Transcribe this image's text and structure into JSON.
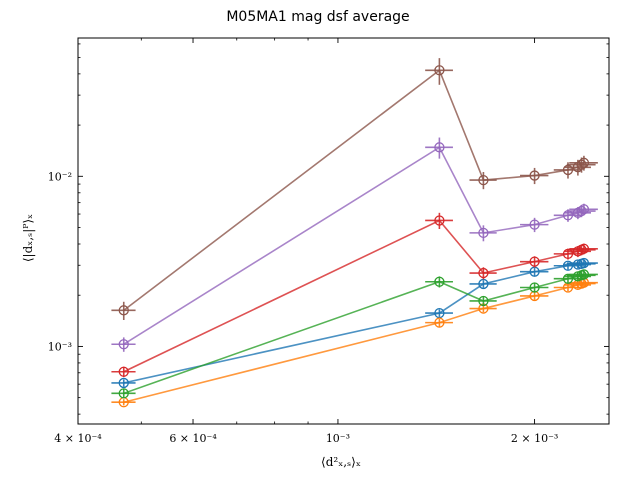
{
  "chart_data": {
    "type": "scatter",
    "title": "M05MA1 mag dsf average",
    "xlabel": "⟨d²ₓ,ₛ⟩ₓ",
    "ylabel": "⟨|dₓ,ₛ|ᴾ⟩ₓ",
    "xscale": "log",
    "yscale": "log",
    "xlim": [
      0.0004,
      0.0026
    ],
    "ylim": [
      0.00035,
      0.065
    ],
    "x_ticks": [
      {
        "value": 0.0004,
        "label": "4 × 10⁻⁴"
      },
      {
        "value": 0.0006,
        "label": "6 × 10⁻⁴"
      },
      {
        "value": 0.001,
        "label": "10⁻³"
      },
      {
        "value": 0.002,
        "label": "2 × 10⁻³"
      }
    ],
    "y_ticks": [
      {
        "value": 0.001,
        "label": "10⁻³"
      },
      {
        "value": 0.01,
        "label": "10⁻²"
      }
    ],
    "legend": "none",
    "grid": false,
    "series": [
      {
        "color": "#1f77b4",
        "points": [
          {
            "x": 0.00047,
            "y": 0.00061,
            "xerr": 2e-05,
            "yerr": 3e-05
          },
          {
            "x": 0.00143,
            "y": 0.00157,
            "xerr": 7e-05,
            "yerr": 8e-05
          },
          {
            "x": 0.00167,
            "y": 0.00233,
            "xerr": 8e-05,
            "yerr": 0.00012
          },
          {
            "x": 0.002,
            "y": 0.00275,
            "xerr": 0.0001,
            "yerr": 0.00014
          },
          {
            "x": 0.00225,
            "y": 0.00298,
            "xerr": 0.00011,
            "yerr": 0.00015
          },
          {
            "x": 0.00233,
            "y": 0.00303,
            "xerr": 0.00011,
            "yerr": 0.00015
          },
          {
            "x": 0.00236,
            "y": 0.00306,
            "xerr": 0.00012,
            "yerr": 0.00015
          },
          {
            "x": 0.00238,
            "y": 0.00309,
            "xerr": 0.00012,
            "yerr": 0.00015
          }
        ]
      },
      {
        "color": "#ff7f0e",
        "points": [
          {
            "x": 0.00047,
            "y": 0.00047,
            "xerr": 2e-05,
            "yerr": 2e-05
          },
          {
            "x": 0.00143,
            "y": 0.00138,
            "xerr": 7e-05,
            "yerr": 7e-05
          },
          {
            "x": 0.00167,
            "y": 0.00167,
            "xerr": 8e-05,
            "yerr": 8e-05
          },
          {
            "x": 0.002,
            "y": 0.00198,
            "xerr": 0.0001,
            "yerr": 0.0001
          },
          {
            "x": 0.00225,
            "y": 0.00222,
            "xerr": 0.00011,
            "yerr": 0.00011
          },
          {
            "x": 0.00233,
            "y": 0.0023,
            "xerr": 0.00011,
            "yerr": 0.00011
          },
          {
            "x": 0.00236,
            "y": 0.00234,
            "xerr": 0.00012,
            "yerr": 0.00012
          },
          {
            "x": 0.00238,
            "y": 0.00237,
            "xerr": 0.00012,
            "yerr": 0.00012
          }
        ]
      },
      {
        "color": "#2ca02c",
        "points": [
          {
            "x": 0.00047,
            "y": 0.00053,
            "xerr": 2e-05,
            "yerr": 3e-05
          },
          {
            "x": 0.00143,
            "y": 0.0024,
            "xerr": 7e-05,
            "yerr": 0.00018
          },
          {
            "x": 0.00167,
            "y": 0.00185,
            "xerr": 8e-05,
            "yerr": 0.00012
          },
          {
            "x": 0.002,
            "y": 0.00222,
            "xerr": 0.0001,
            "yerr": 0.00013
          },
          {
            "x": 0.00225,
            "y": 0.0025,
            "xerr": 0.00011,
            "yerr": 0.00014
          },
          {
            "x": 0.00233,
            "y": 0.00258,
            "xerr": 0.00011,
            "yerr": 0.00014
          },
          {
            "x": 0.00236,
            "y": 0.00262,
            "xerr": 0.00012,
            "yerr": 0.00014
          },
          {
            "x": 0.00238,
            "y": 0.00265,
            "xerr": 0.00012,
            "yerr": 0.00014
          }
        ]
      },
      {
        "color": "#d62728",
        "points": [
          {
            "x": 0.00047,
            "y": 0.00071,
            "xerr": 2e-05,
            "yerr": 5e-05
          },
          {
            "x": 0.00143,
            "y": 0.0055,
            "xerr": 7e-05,
            "yerr": 0.0006
          },
          {
            "x": 0.00167,
            "y": 0.0027,
            "xerr": 8e-05,
            "yerr": 0.00022
          },
          {
            "x": 0.002,
            "y": 0.00315,
            "xerr": 0.0001,
            "yerr": 0.00024
          },
          {
            "x": 0.00225,
            "y": 0.0035,
            "xerr": 0.00011,
            "yerr": 0.00026
          },
          {
            "x": 0.00233,
            "y": 0.00362,
            "xerr": 0.00011,
            "yerr": 0.00027
          },
          {
            "x": 0.00236,
            "y": 0.0037,
            "xerr": 0.00012,
            "yerr": 0.00027
          },
          {
            "x": 0.00238,
            "y": 0.00375,
            "xerr": 0.00012,
            "yerr": 0.00027
          }
        ]
      },
      {
        "color": "#9467bd",
        "points": [
          {
            "x": 0.00047,
            "y": 0.00103,
            "xerr": 2e-05,
            "yerr": 0.0001
          },
          {
            "x": 0.00143,
            "y": 0.0148,
            "xerr": 7e-05,
            "yerr": 0.0021
          },
          {
            "x": 0.00167,
            "y": 0.00465,
            "xerr": 8e-05,
            "yerr": 0.0005
          },
          {
            "x": 0.002,
            "y": 0.0052,
            "xerr": 0.0001,
            "yerr": 0.0005
          },
          {
            "x": 0.00225,
            "y": 0.0059,
            "xerr": 0.00011,
            "yerr": 0.0005
          },
          {
            "x": 0.00233,
            "y": 0.0061,
            "xerr": 0.00011,
            "yerr": 0.0005
          },
          {
            "x": 0.00236,
            "y": 0.00625,
            "xerr": 0.00012,
            "yerr": 0.0005
          },
          {
            "x": 0.00238,
            "y": 0.0064,
            "xerr": 0.00012,
            "yerr": 0.0005
          }
        ]
      },
      {
        "color": "#8c564b",
        "points": [
          {
            "x": 0.00047,
            "y": 0.00163,
            "xerr": 2e-05,
            "yerr": 0.0002
          },
          {
            "x": 0.00143,
            "y": 0.042,
            "xerr": 7e-05,
            "yerr": 0.0075
          },
          {
            "x": 0.00167,
            "y": 0.0095,
            "xerr": 8e-05,
            "yerr": 0.0011
          },
          {
            "x": 0.002,
            "y": 0.0101,
            "xerr": 0.0001,
            "yerr": 0.0011
          },
          {
            "x": 0.00225,
            "y": 0.0109,
            "xerr": 0.00011,
            "yerr": 0.0012
          },
          {
            "x": 0.00233,
            "y": 0.0113,
            "xerr": 0.00011,
            "yerr": 0.0012
          },
          {
            "x": 0.00236,
            "y": 0.0117,
            "xerr": 0.00012,
            "yerr": 0.0012
          },
          {
            "x": 0.00238,
            "y": 0.012,
            "xerr": 0.00012,
            "yerr": 0.0012
          }
        ]
      }
    ]
  }
}
